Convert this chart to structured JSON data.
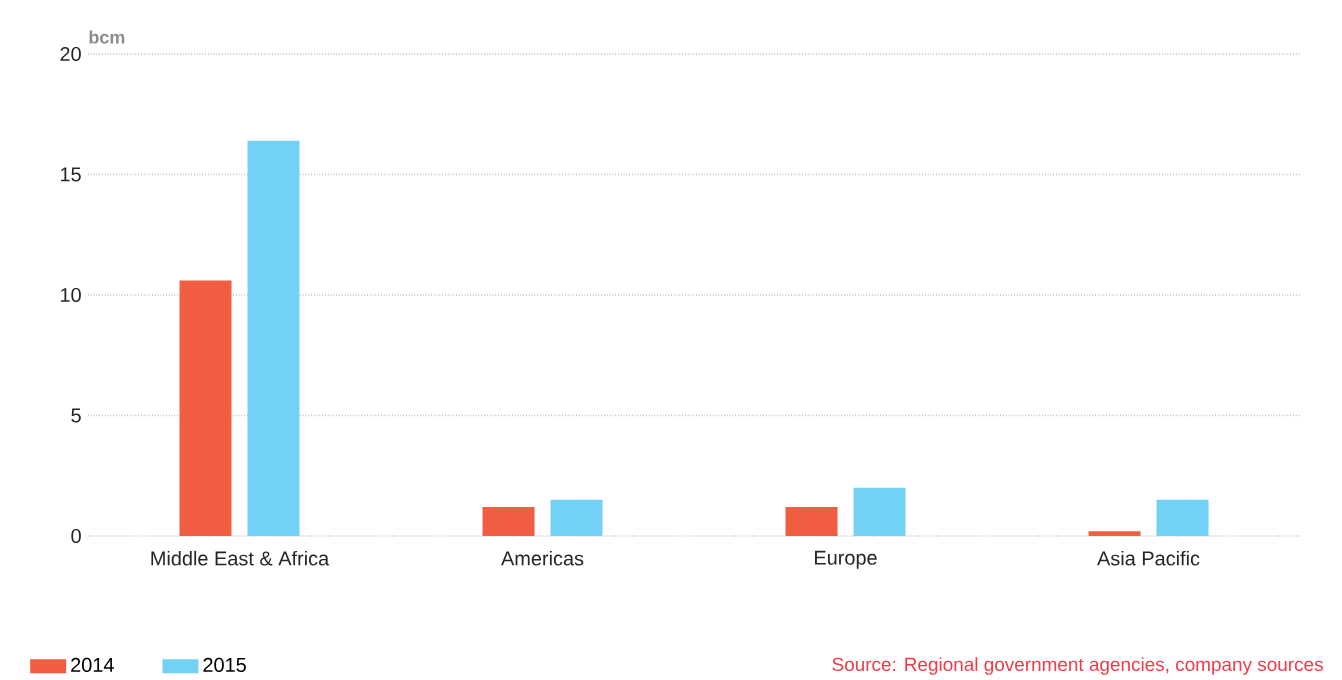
{
  "chart_data": {
    "type": "bar",
    "ylabel": "bcm",
    "categories": [
      "Middle East & Africa",
      "Americas",
      "Europe",
      "Asia Pacific"
    ],
    "series": [
      {
        "name": "2014",
        "color": "#f15d40",
        "values": [
          10.6,
          1.2,
          1.2,
          0.2
        ]
      },
      {
        "name": "2015",
        "color": "#74d1f6",
        "values": [
          16.4,
          1.5,
          2.0,
          1.5
        ]
      }
    ],
    "ylim": [
      0,
      20
    ],
    "yticks": [
      0,
      5,
      10,
      15,
      20
    ],
    "grid": "y",
    "legend": "bottom left",
    "annotations": [
      "Source: Regional government agencies, company sources"
    ]
  }
}
